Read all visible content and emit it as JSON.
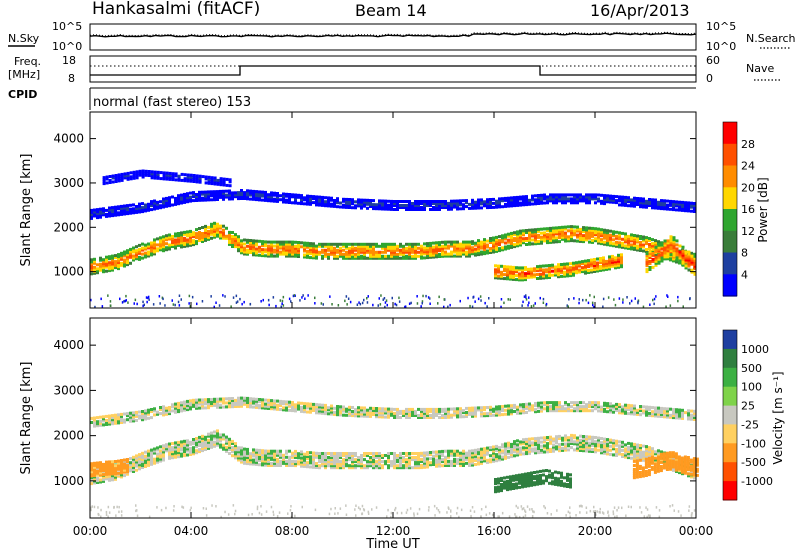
{
  "header": {
    "station": "Hankasalmi (fitACF)",
    "beam": "Beam 14",
    "date": "16/Apr/2013"
  },
  "noise_panel": {
    "left_label": "N.Sky",
    "right_label": "N.Search",
    "left_ticks": [
      "10^5",
      "10^0"
    ],
    "right_ticks": [
      "10^5",
      "10^0"
    ]
  },
  "freq_panel": {
    "left_label_1": "Freq.",
    "left_label_2": "[MHz]",
    "left_ticks": [
      "18",
      "8"
    ],
    "right_label": "Nave",
    "right_ticks": [
      "60",
      "0"
    ],
    "cpid_label": "CPID"
  },
  "cpid_text": "normal (fast stereo) 153",
  "power_panel": {
    "ylabel": "Slant Range [km]",
    "y_ticks": [
      "4000",
      "3000",
      "2000",
      "1000"
    ],
    "colorbar_label": "Power [dB]",
    "colorbar_ticks": [
      "28",
      "24",
      "20",
      "16",
      "12",
      "8",
      "4"
    ],
    "colors": [
      "#0000ff",
      "#1e3fa0",
      "#3a7d3a",
      "#2fa62f",
      "#ffd700",
      "#ff8c00",
      "#ff5000",
      "#ff0000"
    ]
  },
  "velocity_panel": {
    "ylabel": "Slant Range [km]",
    "y_ticks": [
      "4000",
      "3000",
      "2000",
      "1000"
    ],
    "colorbar_label": "Velocity [m s⁻¹]",
    "colorbar_ticks": [
      "1000",
      "500",
      "100",
      "25",
      "-25",
      "-100",
      "-500",
      "-1000"
    ],
    "colors": [
      "#1e3fa0",
      "#2f7f3f",
      "#3cb043",
      "#7fd34a",
      "#c8c8c0",
      "#ffd060",
      "#ff9a20",
      "#ff5000",
      "#ff0000"
    ]
  },
  "x_axis": {
    "ticks": [
      "00:00",
      "04:00",
      "08:00",
      "12:00",
      "16:00",
      "20:00",
      "00:00"
    ],
    "label": "Time UT"
  },
  "chart_data": [
    {
      "type": "heatmap",
      "title": "Power",
      "xlabel": "Time UT",
      "ylabel": "Slant Range [km]",
      "xlim": [
        0,
        24
      ],
      "ylim": [
        180,
        4600
      ],
      "colorbar": {
        "label": "Power [dB]",
        "range": [
          0,
          32
        ]
      },
      "bands": [
        {
          "t": [
            0,
            1,
            2,
            3,
            4,
            5,
            6,
            7,
            8,
            9,
            10,
            11,
            12,
            13,
            14,
            15,
            16,
            17,
            18,
            19,
            20,
            21,
            22,
            23,
            24
          ],
          "range_km": [
            1100,
            1200,
            1450,
            1650,
            1750,
            1950,
            1550,
            1500,
            1500,
            1450,
            1450,
            1450,
            1450,
            1450,
            1500,
            1500,
            1600,
            1750,
            1800,
            1850,
            1800,
            1700,
            1600,
            1400,
            1200
          ],
          "width_km": 320,
          "power_db": 26
        },
        {
          "t": [
            0,
            2,
            4,
            6,
            8,
            10,
            12,
            14,
            16,
            18,
            20,
            22,
            24
          ],
          "range_km": [
            2300,
            2450,
            2700,
            2750,
            2650,
            2550,
            2500,
            2500,
            2550,
            2650,
            2650,
            2550,
            2450
          ],
          "width_km": 220,
          "power_db": 7
        },
        {
          "t": [
            0.5,
            2,
            4,
            5.5
          ],
          "range_km": [
            3050,
            3200,
            3100,
            3000
          ],
          "width_km": 150,
          "power_db": 6
        },
        {
          "t": [
            16,
            17,
            18,
            19,
            20,
            21
          ],
          "range_km": [
            1000,
            950,
            1000,
            1050,
            1150,
            1250
          ],
          "width_km": 300,
          "power_db": 27
        },
        {
          "t": [
            22,
            22.5,
            23,
            23.5,
            24
          ],
          "range_km": [
            1200,
            1400,
            1600,
            1300,
            1100
          ],
          "width_km": 420,
          "power_db": 28
        }
      ]
    },
    {
      "type": "heatmap",
      "title": "Velocity",
      "xlabel": "Time UT",
      "ylabel": "Slant Range [km]",
      "xlim": [
        0,
        24
      ],
      "ylim": [
        180,
        4600
      ],
      "colorbar": {
        "label": "Velocity [m s⁻¹]",
        "range": [
          -1000,
          1000
        ]
      },
      "bands": [
        {
          "t": [
            0,
            1,
            2,
            3,
            4,
            5,
            6,
            7,
            8,
            9,
            10,
            11,
            12,
            13,
            14,
            15,
            16,
            17,
            18,
            19,
            20,
            21,
            22,
            23,
            24
          ],
          "range_km": [
            1100,
            1200,
            1450,
            1650,
            1750,
            1950,
            1550,
            1500,
            1500,
            1450,
            1450,
            1450,
            1450,
            1450,
            1500,
            1500,
            1600,
            1750,
            1800,
            1850,
            1800,
            1700,
            1600,
            1400,
            1200
          ],
          "width_km": 340,
          "velocity": 0
        },
        {
          "t": [
            0,
            0.5,
            1,
            1.5
          ],
          "range_km": [
            1250,
            1280,
            1300,
            1350
          ],
          "width_km": 300,
          "velocity": -150
        },
        {
          "t": [
            0,
            2,
            4,
            6,
            8,
            10,
            12,
            14,
            16,
            18,
            20,
            22,
            24
          ],
          "range_km": [
            2300,
            2450,
            2700,
            2750,
            2650,
            2550,
            2500,
            2500,
            2550,
            2650,
            2650,
            2550,
            2450
          ],
          "width_km": 220,
          "velocity": 0
        },
        {
          "t": [
            16,
            17,
            18,
            19
          ],
          "range_km": [
            900,
            1000,
            1100,
            1000
          ],
          "width_km": 300,
          "velocity": 250
        },
        {
          "t": [
            21.5,
            22,
            22.5,
            23,
            23.5,
            24
          ],
          "range_km": [
            1250,
            1300,
            1400,
            1450,
            1350,
            1300
          ],
          "width_km": 380,
          "velocity": -300
        }
      ]
    }
  ]
}
